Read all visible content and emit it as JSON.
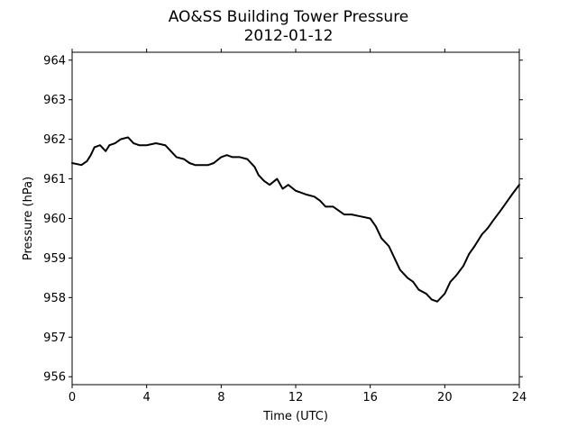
{
  "chart_data": {
    "type": "line",
    "title": "AO&SS Building Tower Pressure",
    "subtitle": "2012-01-12",
    "xlabel": "Time (UTC)",
    "ylabel": "Pressure (hPa)",
    "xlim": [
      0,
      24
    ],
    "ylim": [
      955.8,
      964.2
    ],
    "xticks": [
      0,
      4,
      8,
      12,
      16,
      20,
      24
    ],
    "yticks": [
      956,
      957,
      958,
      959,
      960,
      961,
      962,
      963,
      964
    ],
    "grid": false,
    "line_color": "#000000",
    "series": [
      {
        "x": [
          0,
          0.5,
          0.8,
          1.0,
          1.2,
          1.5,
          1.8,
          2.0,
          2.3,
          2.6,
          3.0,
          3.3,
          3.6,
          4.0,
          4.5,
          5.0,
          5.3,
          5.6,
          6.0,
          6.3,
          6.6,
          7.0,
          7.3,
          7.6,
          8.0,
          8.3,
          8.6,
          9.0,
          9.4,
          9.8,
          10.0,
          10.3,
          10.6,
          11.0,
          11.3,
          11.6,
          12.0,
          12.3,
          12.6,
          13.0,
          13.3,
          13.6,
          14.0,
          14.3,
          14.6,
          15.0,
          15.5,
          16.0,
          16.3,
          16.6,
          17.0,
          17.3,
          17.6,
          18.0,
          18.3,
          18.6,
          19.0,
          19.3,
          19.6,
          20.0,
          20.3,
          20.6,
          21.0,
          21.3,
          21.6,
          22.0,
          22.3,
          22.6,
          23.0,
          23.3,
          23.6,
          24.0
        ],
        "y": [
          961.4,
          961.35,
          961.45,
          961.6,
          961.8,
          961.85,
          961.7,
          961.85,
          961.9,
          962.0,
          962.05,
          961.9,
          961.85,
          961.85,
          961.9,
          961.85,
          961.7,
          961.55,
          961.5,
          961.4,
          961.35,
          961.35,
          961.35,
          961.4,
          961.55,
          961.6,
          961.55,
          961.55,
          961.5,
          961.3,
          961.1,
          960.95,
          960.85,
          961.0,
          960.75,
          960.85,
          960.7,
          960.65,
          960.6,
          960.55,
          960.45,
          960.3,
          960.3,
          960.2,
          960.1,
          960.1,
          960.05,
          960.0,
          959.8,
          959.5,
          959.3,
          959.0,
          958.7,
          958.5,
          958.4,
          958.2,
          958.1,
          957.95,
          957.9,
          958.1,
          958.4,
          958.55,
          958.8,
          959.1,
          959.3,
          959.6,
          959.75,
          959.95,
          960.2,
          960.4,
          960.6,
          960.85
        ]
      }
    ]
  }
}
